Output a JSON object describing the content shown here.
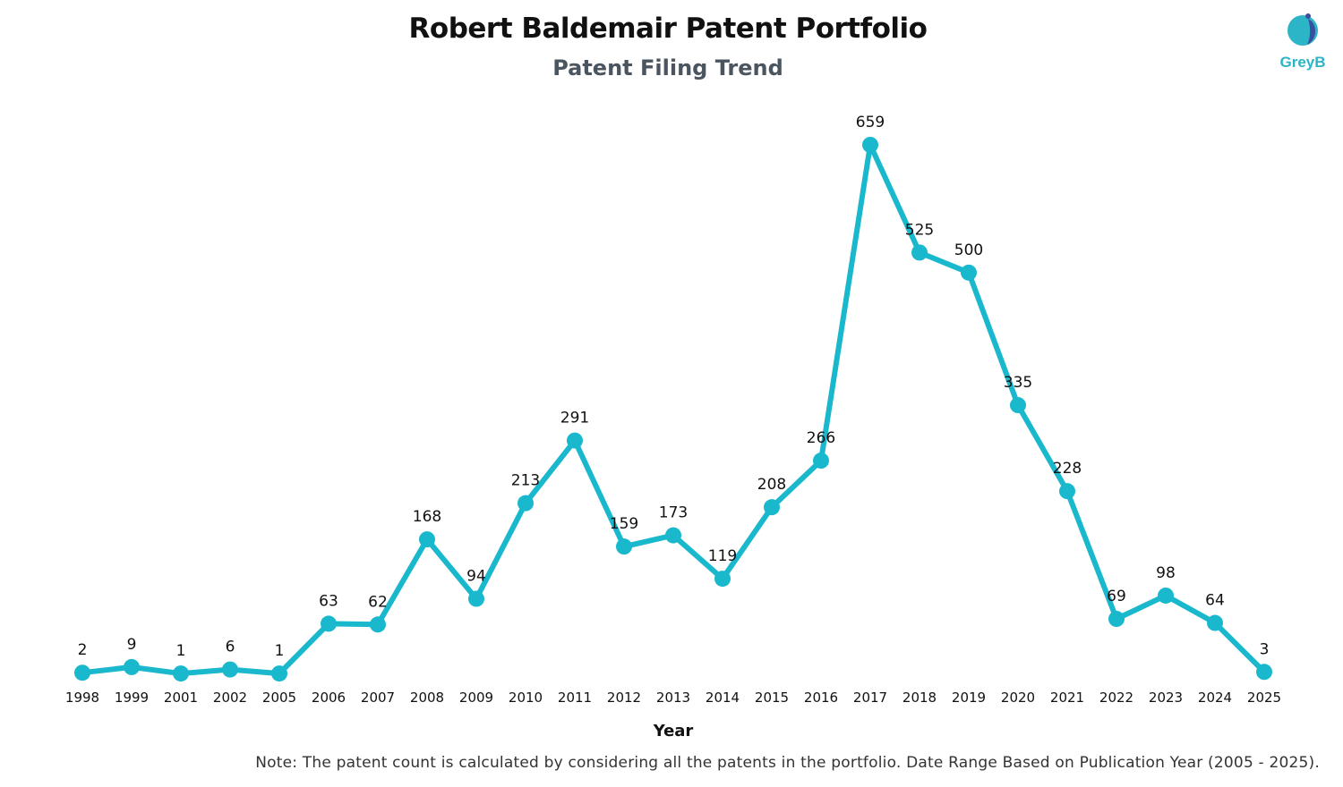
{
  "header": {
    "title": "Robert Baldemair Patent Portfolio",
    "subtitle": "Patent Filing Trend"
  },
  "logo": {
    "text": "GreyB",
    "icon": "greyb-logo-icon",
    "colors": {
      "primary": "#2bb5c6",
      "accent": "#3a4fa0"
    }
  },
  "note": "Note: The patent count is calculated by considering all the patents in the portfolio. Date Range Based on Publication Year (2005 - 2025).",
  "chart_data": {
    "type": "line",
    "title": "Robert Baldemair Patent Portfolio",
    "subtitle": "Patent Filing Trend",
    "xlabel": "Year",
    "ylabel": "",
    "categories": [
      "1998",
      "1999",
      "2001",
      "2002",
      "2005",
      "2006",
      "2007",
      "2008",
      "2009",
      "2010",
      "2011",
      "2012",
      "2013",
      "2014",
      "2015",
      "2016",
      "2017",
      "2018",
      "2019",
      "2020",
      "2021",
      "2022",
      "2023",
      "2024",
      "2025"
    ],
    "values": [
      2,
      9,
      1,
      6,
      1,
      63,
      62,
      168,
      94,
      213,
      291,
      159,
      173,
      119,
      208,
      266,
      659,
      525,
      500,
      335,
      228,
      69,
      98,
      64,
      3
    ],
    "ylim": [
      0,
      659
    ],
    "grid": false,
    "legend": "none",
    "line_color": "#1ab8cc",
    "data_labels": true
  }
}
